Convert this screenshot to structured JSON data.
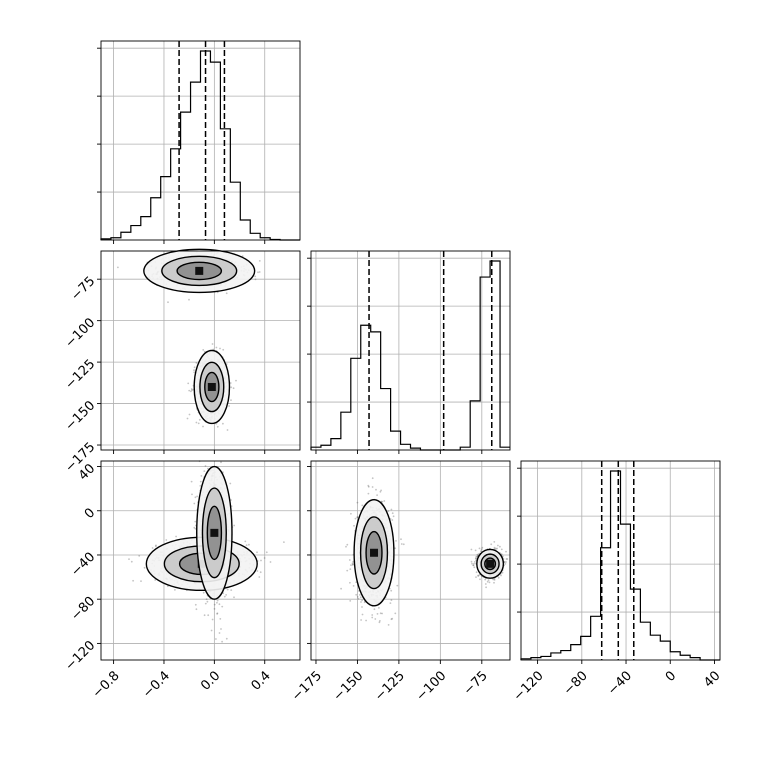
{
  "chart_data": {
    "type": "corner",
    "grid": true,
    "parameters": [
      {
        "ticks": [
          -0.8,
          -0.4,
          0.0,
          0.4
        ],
        "tick_labels": [
          "−0.8",
          "−0.4",
          "0.0",
          "0.4"
        ],
        "range": [
          -0.9,
          0.68
        ]
      },
      {
        "ticks": [
          -175,
          -150,
          -125,
          -100,
          -75
        ],
        "tick_labels": [
          "−175",
          "−150",
          "−125",
          "−100",
          "−75"
        ],
        "range": [
          -178,
          -58
        ]
      },
      {
        "ticks": [
          -120,
          -80,
          -40,
          0,
          40
        ],
        "tick_labels": [
          "−120",
          "−80",
          "−40",
          "0",
          "40"
        ],
        "range": [
          -135,
          45
        ]
      }
    ],
    "histograms": [
      {
        "parameter": 0,
        "bin_edges": [
          -0.9,
          -0.821,
          -0.742,
          -0.663,
          -0.584,
          -0.505,
          -0.426,
          -0.347,
          -0.268,
          -0.189,
          -0.11,
          -0.031,
          0.048,
          0.127,
          0.206,
          0.285,
          0.364,
          0.443,
          0.522,
          0.601,
          0.68
        ],
        "counts": [
          1,
          2,
          7,
          13,
          21,
          38,
          57,
          82,
          115,
          142,
          170,
          160,
          100,
          52,
          18,
          6,
          2,
          0.5,
          0,
          0
        ],
        "quantiles": [
          -0.28,
          -0.07,
          0.08
        ]
      },
      {
        "parameter": 1,
        "bin_edges": [
          -178,
          -172,
          -166,
          -160,
          -154,
          -148,
          -142,
          -136,
          -130,
          -124,
          -118,
          -112,
          -106,
          -100,
          -94,
          -88,
          -82,
          -76,
          -70,
          -64,
          -58
        ],
        "counts": [
          3,
          5,
          12,
          40,
          97,
          132,
          125,
          65,
          20,
          6,
          2,
          0,
          0,
          0,
          0,
          3,
          52,
          183,
          200,
          3
        ],
        "quantiles": [
          -143,
          -98,
          -69
        ]
      },
      {
        "parameter": 2,
        "bin_edges": [
          -135,
          -126,
          -117,
          -108,
          -99,
          -90,
          -81,
          -72,
          -63,
          -54,
          -45,
          -36,
          -27,
          -18,
          -9,
          0,
          9,
          18,
          27,
          36,
          45
        ],
        "counts": [
          1,
          2,
          3,
          6,
          8,
          13,
          20,
          37,
          95,
          160,
          115,
          60,
          32,
          21,
          16,
          7,
          4,
          2,
          0,
          0
        ],
        "quantiles": [
          -62,
          -47,
          -33
        ]
      }
    ],
    "scatter_panels": [
      {
        "x_param": 0,
        "y_param": 1,
        "clusters": [
          {
            "center": [
              -0.12,
              -70
            ],
            "sd": [
              0.16,
              4.5
            ],
            "weight": 0.5,
            "contour_sd": [
              0.22,
              6.5
            ]
          },
          {
            "center": [
              -0.02,
              -140
            ],
            "sd": [
              0.06,
              9
            ],
            "weight": 0.5,
            "contour_sd": [
              0.07,
              11
            ]
          }
        ]
      },
      {
        "x_param": 0,
        "y_param": 2,
        "clusters": [
          {
            "center": [
              -0.1,
              -48
            ],
            "sd": [
              0.18,
              9
            ],
            "weight": 0.55,
            "contour_sd": [
              0.22,
              12
            ]
          },
          {
            "center": [
              0.0,
              -20
            ],
            "sd": [
              0.06,
              28
            ],
            "weight": 0.45,
            "contour_sd": [
              0.07,
              30
            ]
          }
        ]
      },
      {
        "x_param": 1,
        "y_param": 2,
        "clusters": [
          {
            "center": [
              -140,
              -38
            ],
            "sd": [
              5.5,
              22
            ],
            "weight": 0.5,
            "contour_sd": [
              6,
              24
            ]
          },
          {
            "center": [
              -70,
              -48
            ],
            "sd": [
              3.5,
              6
            ],
            "weight": 0.5,
            "contour_sd": [
              4,
              6.5
            ]
          }
        ]
      }
    ]
  }
}
